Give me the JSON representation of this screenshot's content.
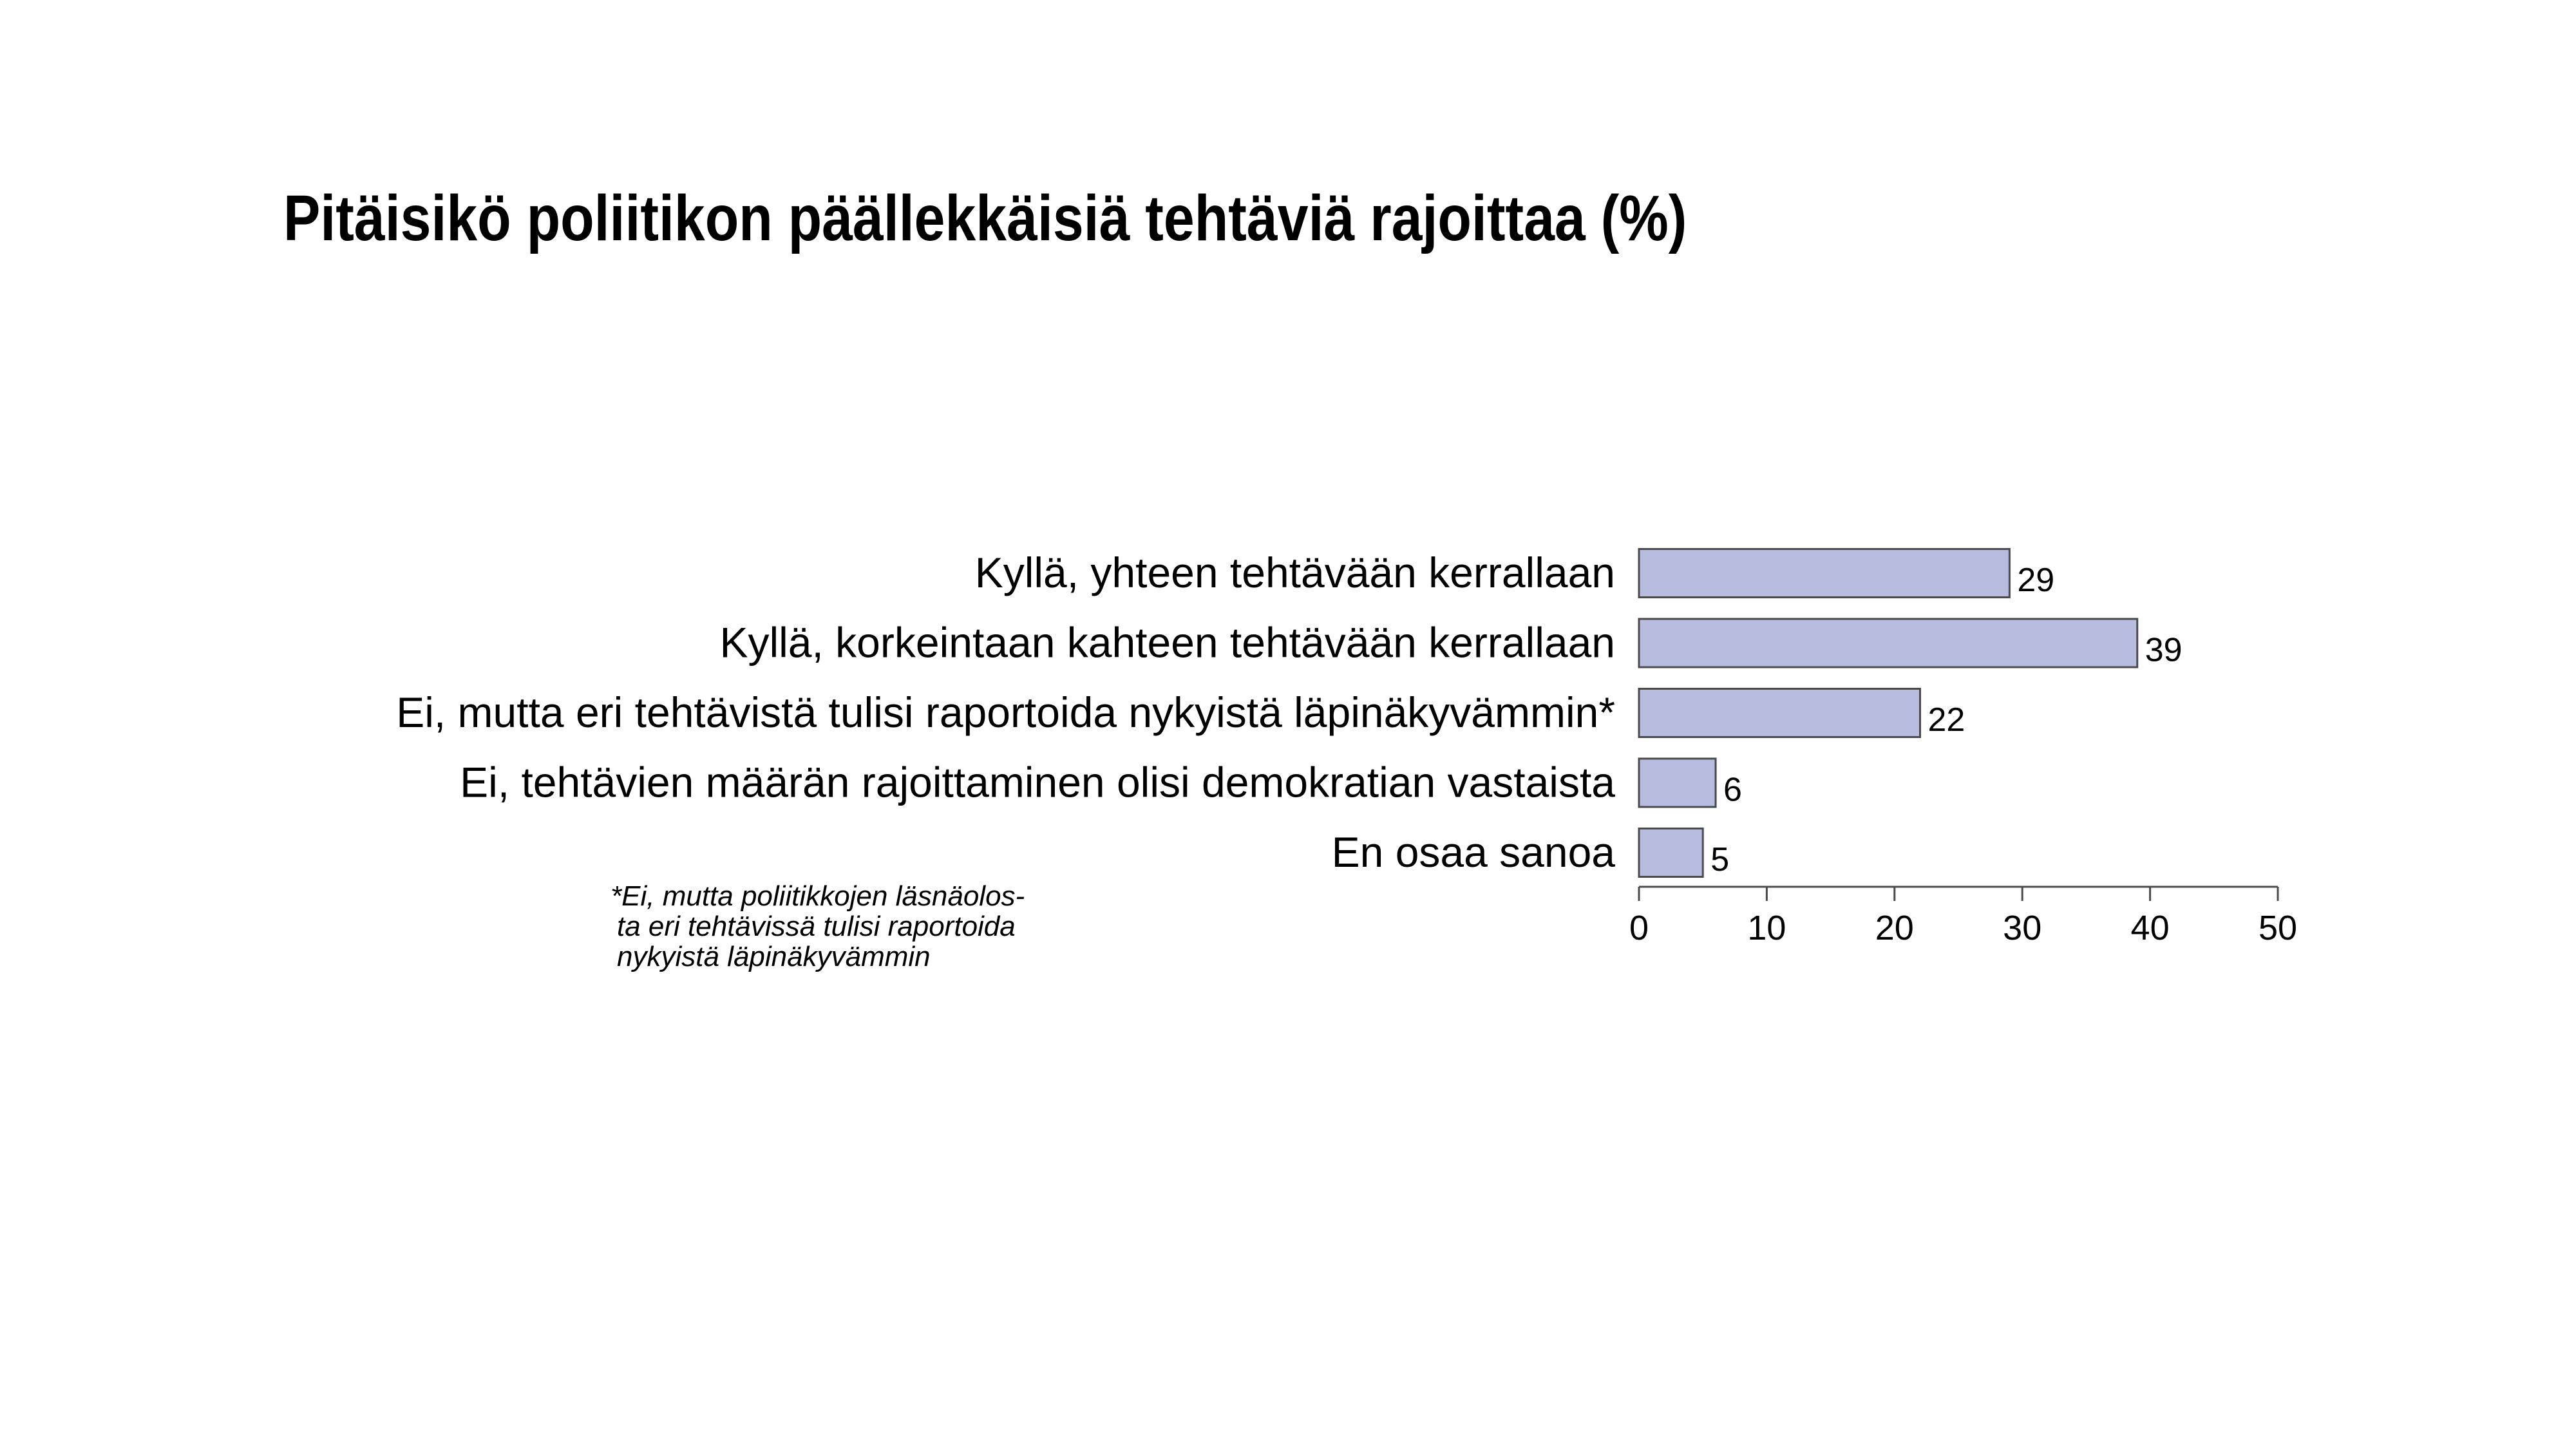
{
  "title": "Pitäisikö poliitikon päällekkäisiä tehtäviä rajoittaa (%)",
  "footnote": {
    "lines": [
      "*Ei, mutta poliitikkojen läsnäolos-",
      "ta eri tehtävissä tulisi raportoida",
      "nykyistä läpinäkyvämmin"
    ]
  },
  "colors": {
    "bar_fill": "#b8bddf",
    "bar_stroke": "#4a4a4a",
    "axis": "#4a4a4a",
    "text": "#000000"
  },
  "chart_data": {
    "type": "bar",
    "orientation": "horizontal",
    "title": "Pitäisikö poliitikon päällekkäisiä tehtäviä rajoittaa (%)",
    "categories": [
      "Kyllä, yhteen tehtävään kerrallaan",
      "Kyllä, korkeintaan kahteen tehtävään kerrallaan",
      "Ei, mutta eri tehtävistä tulisi raportoida nykyistä läpinäkyvämmin*",
      "Ei, tehtävien määrän rajoittaminen olisi demokratian vastaista",
      "En osaa sanoa"
    ],
    "values": [
      29,
      39,
      22,
      6,
      5
    ],
    "value_labels": [
      "29",
      "39",
      "22",
      "6",
      "5"
    ],
    "xlim": [
      0,
      50
    ],
    "xticks": [
      0,
      10,
      20,
      30,
      40,
      50
    ],
    "xtick_labels": [
      "0",
      "10",
      "20",
      "30",
      "40",
      "50"
    ],
    "xlabel": "",
    "ylabel": "",
    "grid": false,
    "legend": "none"
  }
}
